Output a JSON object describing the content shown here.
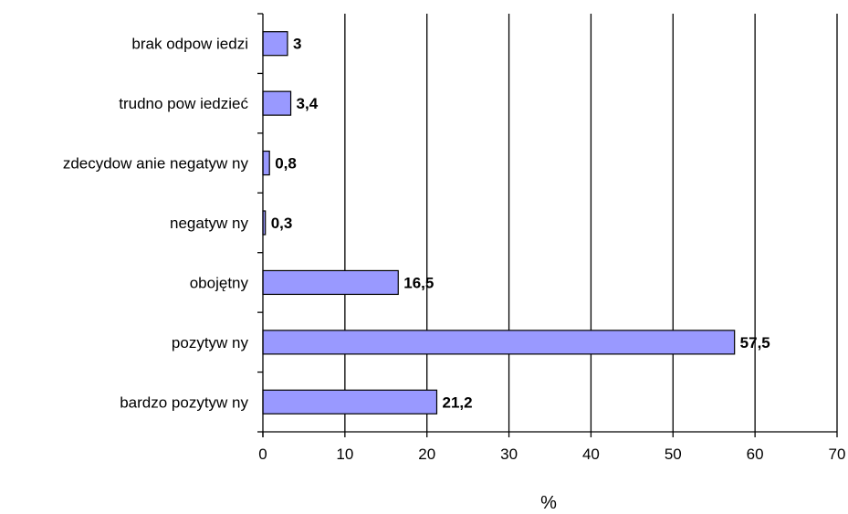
{
  "chart_data": {
    "type": "bar",
    "orientation": "horizontal",
    "categories": [
      "brak odpow iedzi",
      "trudno pow iedzieć",
      "zdecydow anie negatyw ny",
      "negatyw ny",
      "obojętny",
      "pozytyw ny",
      "bardzo pozytyw ny"
    ],
    "values": [
      3,
      3.4,
      0.8,
      0.3,
      16.5,
      57.5,
      21.2
    ],
    "value_labels": [
      "3",
      "3,4",
      "0,8",
      "0,3",
      "16,5",
      "57,5",
      "21,2"
    ],
    "xlabel": "%",
    "ylabel": "",
    "title": "",
    "xlim": [
      0,
      70
    ],
    "xticks": [
      0,
      10,
      20,
      30,
      40,
      50,
      60,
      70
    ],
    "grid": "vertical",
    "legend": "none",
    "bar_color": "#9999ff",
    "bar_edge_color": "#000000"
  }
}
